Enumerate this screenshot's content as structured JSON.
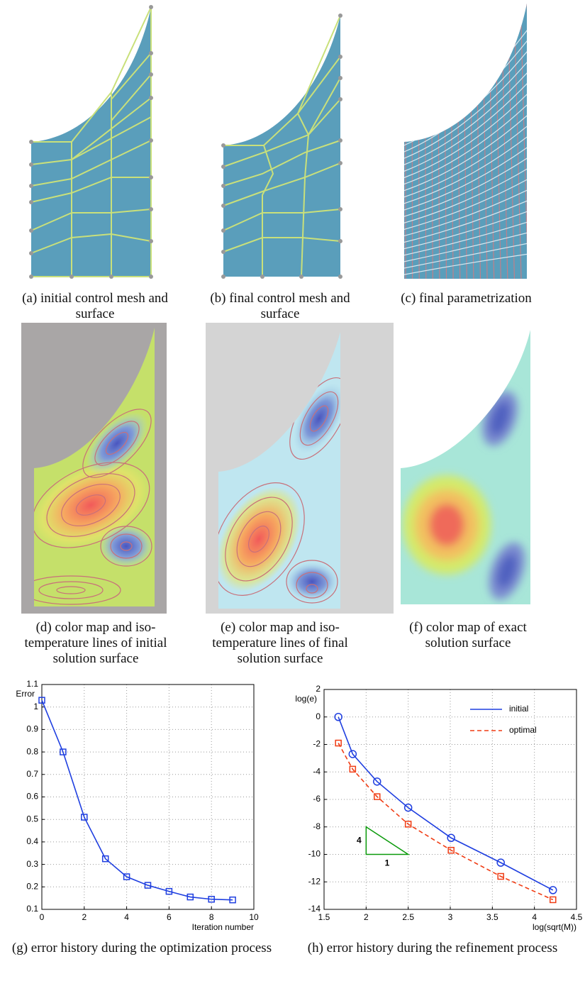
{
  "captions": [
    "(a) initial control mesh and surface",
    "(b) final control mesh and surface",
    "(c) final parametrization",
    "(d) color map and iso-temperature lines of initial solution surface",
    "(e) color map and iso-temperature lines of final solution surface",
    "(f) color map of exact solution surface",
    "(g) error history during the optimization process",
    "(h) error history during the refinement process"
  ],
  "chart_data": [
    {
      "type": "line",
      "y_label": "Error",
      "x_label": "Iteration number",
      "x": [
        0,
        1,
        2,
        3,
        4,
        5,
        6,
        7,
        8,
        9
      ],
      "series": [
        {
          "color": "#1f3fe0",
          "marker": "square",
          "linestyle": "solid",
          "values": [
            1.03,
            0.8,
            0.51,
            0.325,
            0.245,
            0.207,
            0.18,
            0.155,
            0.145,
            0.142
          ]
        }
      ],
      "xlim": [
        0,
        10
      ],
      "xticks": [
        0,
        2,
        4,
        6,
        8,
        10
      ],
      "ylim": [
        0.1,
        1.1
      ],
      "yticks": [
        0.1,
        0.2,
        0.3,
        0.4,
        0.5,
        0.6,
        0.7,
        0.8,
        0.9,
        1,
        1.1
      ],
      "grid": true
    },
    {
      "type": "line",
      "y_label": "log(e)",
      "x_label": "log(sqrt(M))",
      "x": [
        1.67,
        1.84,
        2.13,
        2.5,
        3.01,
        3.6,
        4.22
      ],
      "series": [
        {
          "name": "initial",
          "color": "#1f3fe0",
          "marker": "circle",
          "linestyle": "solid",
          "values": [
            0,
            -2.7,
            -4.7,
            -6.6,
            -8.8,
            -10.6,
            -12.6
          ]
        },
        {
          "name": "optimal",
          "color": "#f03c14",
          "marker": "square",
          "linestyle": "dashed",
          "values": [
            -1.9,
            -3.8,
            -5.8,
            -7.8,
            -9.7,
            -11.6,
            -13.3
          ]
        }
      ],
      "xlim": [
        1.5,
        4.5
      ],
      "xticks": [
        1.5,
        2,
        2.5,
        3,
        3.5,
        4,
        4.5
      ],
      "ylim": [
        -14,
        2
      ],
      "yticks": [
        -14,
        -12,
        -10,
        -8,
        -6,
        -4,
        -2,
        0,
        2
      ],
      "grid": true,
      "legend": "upper right",
      "slope_triangle": {
        "x": [
          2,
          2.5
        ],
        "y": [
          -10,
          -8
        ],
        "labels": [
          "4",
          "1"
        ],
        "color": "#0a9a0a"
      }
    }
  ]
}
